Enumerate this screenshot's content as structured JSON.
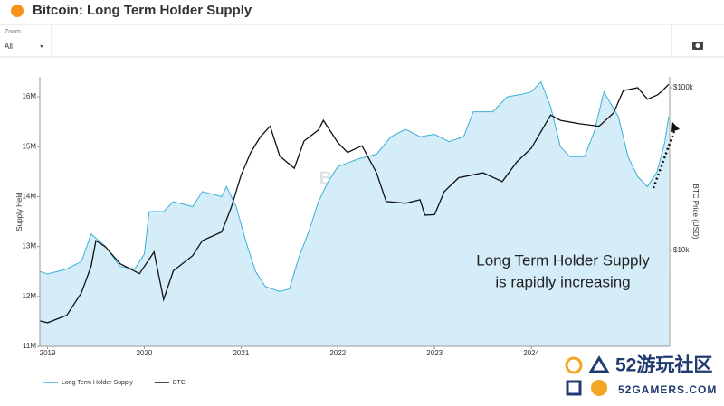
{
  "header": {
    "title": "Bitcoin: Long Term Holder Supply"
  },
  "zoom": {
    "label": "Zoom",
    "value": "All"
  },
  "overlay": {
    "brand": "52游玩社区",
    "site": "52GAMERS.COM"
  },
  "chart_data": {
    "type": "line",
    "ylabel": "Supply Held",
    "y2label": "BTC Price (USD)",
    "annotation": [
      "Long Term Holder Supply",
      "is rapidly increasing"
    ],
    "watermark": [
      "BITCOIN MAGAZINE",
      "PRO"
    ],
    "xlim": [
      2018.92,
      2025.43
    ],
    "xticks": [
      2019,
      2020,
      2021,
      2022,
      2023,
      2024
    ],
    "ylim": [
      11000000,
      16400000
    ],
    "yticks": [
      {
        "value": 11000000,
        "label": "11M"
      },
      {
        "value": 12000000,
        "label": "12M"
      },
      {
        "value": 13000000,
        "label": "13M"
      },
      {
        "value": 14000000,
        "label": "14M"
      },
      {
        "value": 15000000,
        "label": "15M"
      },
      {
        "value": 16000000,
        "label": "16M"
      }
    ],
    "y2lim": [
      2577,
      116600
    ],
    "y2log": true,
    "y2ticks": [
      {
        "value": 10000,
        "label": "$10k"
      },
      {
        "value": 100000,
        "label": "$100k"
      }
    ],
    "legend": "bottom-left",
    "series": [
      {
        "name": "Long Term Holder Supply",
        "color": "#3ab0d8",
        "fill": "#d4edf9",
        "x": [
          2018.92,
          2019.0,
          2019.2,
          2019.35,
          2019.45,
          2019.6,
          2019.75,
          2019.9,
          2020.0,
          2020.05,
          2020.2,
          2020.3,
          2020.5,
          2020.6,
          2020.8,
          2020.85,
          2020.95,
          2021.05,
          2021.15,
          2021.25,
          2021.4,
          2021.5,
          2021.6,
          2021.7,
          2021.8,
          2021.9,
          2022.0,
          2022.2,
          2022.4,
          2022.55,
          2022.7,
          2022.85,
          2023.0,
          2023.15,
          2023.3,
          2023.4,
          2023.6,
          2023.75,
          2023.9,
          2024.0,
          2024.1,
          2024.2,
          2024.3,
          2024.4,
          2024.55,
          2024.65,
          2024.75,
          2024.9,
          2025.0,
          2025.1,
          2025.2,
          2025.3,
          2025.38,
          2025.42
        ],
        "values": [
          12500000,
          12450000,
          12550000,
          12700000,
          13250000,
          13000000,
          12600000,
          12550000,
          12850000,
          13700000,
          13700000,
          13900000,
          13800000,
          14100000,
          14000000,
          14200000,
          13800000,
          13100000,
          12500000,
          12200000,
          12100000,
          12150000,
          12800000,
          13300000,
          13900000,
          14300000,
          14600000,
          14750000,
          14850000,
          15200000,
          15350000,
          15200000,
          15250000,
          15100000,
          15200000,
          15700000,
          15700000,
          16000000,
          16050000,
          16100000,
          16300000,
          15800000,
          15000000,
          14800000,
          14800000,
          15300000,
          16100000,
          15600000,
          14800000,
          14400000,
          14200000,
          14500000,
          15100000,
          15600000
        ]
      },
      {
        "name": "BTC",
        "color": "#111111",
        "axis": "y2",
        "x": [
          2018.92,
          2019.0,
          2019.2,
          2019.35,
          2019.45,
          2019.5,
          2019.6,
          2019.75,
          2019.95,
          2020.1,
          2020.2,
          2020.3,
          2020.5,
          2020.6,
          2020.8,
          2020.9,
          2021.0,
          2021.1,
          2021.2,
          2021.3,
          2021.4,
          2021.55,
          2021.65,
          2021.8,
          2021.85,
          2022.0,
          2022.1,
          2022.25,
          2022.4,
          2022.5,
          2022.7,
          2022.85,
          2022.9,
          2023.0,
          2023.1,
          2023.25,
          2023.5,
          2023.7,
          2023.85,
          2024.0,
          2024.2,
          2024.3,
          2024.5,
          2024.7,
          2024.85,
          2024.95,
          2025.1,
          2025.2,
          2025.3,
          2025.35,
          2025.42
        ],
        "values": [
          3690,
          3600,
          4000,
          5500,
          8000,
          11500,
          10500,
          8300,
          7200,
          9800,
          5000,
          7500,
          9300,
          11500,
          13000,
          18500,
          29000,
          40000,
          50000,
          58000,
          38000,
          32000,
          47000,
          55000,
          63000,
          46000,
          40000,
          44000,
          30000,
          20000,
          19500,
          20500,
          16500,
          16600,
          23000,
          28000,
          30000,
          26500,
          35000,
          42500,
          68000,
          63000,
          60000,
          58000,
          70000,
          96000,
          100000,
          85000,
          90000,
          95000,
          105000
        ]
      }
    ]
  }
}
